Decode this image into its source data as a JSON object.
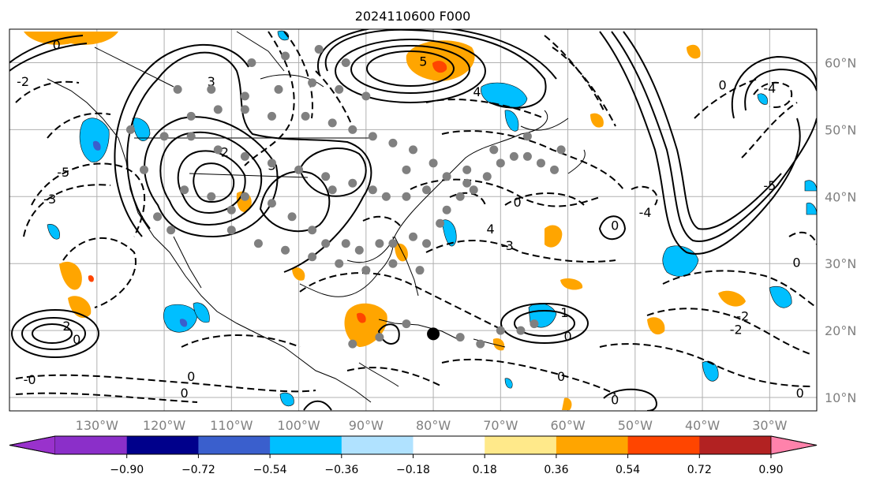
{
  "title": "2024110600 F000",
  "map": {
    "lon_range": [
      -143,
      -23
    ],
    "lat_range": [
      8,
      65
    ],
    "lon_ticks": [
      {
        "value": -130,
        "label": "130°W"
      },
      {
        "value": -120,
        "label": "120°W"
      },
      {
        "value": -110,
        "label": "110°W"
      },
      {
        "value": -100,
        "label": "100°W"
      },
      {
        "value": -90,
        "label": "90°W"
      },
      {
        "value": -80,
        "label": "80°W"
      },
      {
        "value": -70,
        "label": "70°W"
      },
      {
        "value": -60,
        "label": "60°W"
      },
      {
        "value": -50,
        "label": "50°W"
      },
      {
        "value": -40,
        "label": "40°W"
      },
      {
        "value": -30,
        "label": "30°W"
      }
    ],
    "lat_ticks": [
      {
        "value": 10,
        "label": "10°N"
      },
      {
        "value": 20,
        "label": "20°N"
      },
      {
        "value": 30,
        "label": "30°N"
      },
      {
        "value": 40,
        "label": "40°N"
      },
      {
        "value": 50,
        "label": "50°N"
      },
      {
        "value": 60,
        "label": "60°N"
      }
    ],
    "grid": true,
    "marker": {
      "lon": -80,
      "lat": 19.5,
      "color": "#000000"
    },
    "contour_labels": [
      {
        "text": "5",
        "lon": -81.5,
        "lat": 59.5
      },
      {
        "text": "4",
        "lon": -73.5,
        "lat": 55
      },
      {
        "text": "3",
        "lon": -113,
        "lat": 56.5
      },
      {
        "text": "2",
        "lon": -111,
        "lat": 46
      },
      {
        "text": "3",
        "lon": -104,
        "lat": 44
      },
      {
        "text": "0",
        "lon": -136,
        "lat": 62
      },
      {
        "text": "-2",
        "lon": -141,
        "lat": 56.5
      },
      {
        "text": "-3",
        "lon": -137,
        "lat": 39
      },
      {
        "text": "-5",
        "lon": -135,
        "lat": 43
      },
      {
        "text": "4",
        "lon": -71.5,
        "lat": 34.5
      },
      {
        "text": "-3",
        "lon": -69,
        "lat": 32
      },
      {
        "text": "0",
        "lon": -67.5,
        "lat": 38.5
      },
      {
        "text": "0",
        "lon": -53,
        "lat": 35
      },
      {
        "text": "-4",
        "lon": -48.5,
        "lat": 37
      },
      {
        "text": "0",
        "lon": -37,
        "lat": 56
      },
      {
        "text": "-4",
        "lon": -30,
        "lat": 55.5
      },
      {
        "text": "-5",
        "lon": -30,
        "lat": 41
      },
      {
        "text": "0",
        "lon": -26,
        "lat": 29.5
      },
      {
        "text": "2",
        "lon": -134.5,
        "lat": 20
      },
      {
        "text": "0",
        "lon": -133,
        "lat": 18
      },
      {
        "text": "-0",
        "lon": -140,
        "lat": 12
      },
      {
        "text": "0",
        "lon": -116,
        "lat": 12.5
      },
      {
        "text": "0",
        "lon": -117,
        "lat": 10
      },
      {
        "text": "0",
        "lon": -60,
        "lat": 18.5
      },
      {
        "text": "1",
        "lon": -60.5,
        "lat": 22
      },
      {
        "text": "-2",
        "lon": -35,
        "lat": 19.5
      },
      {
        "text": "-2",
        "lon": -34,
        "lat": 21.5
      },
      {
        "text": "0",
        "lon": -25.5,
        "lat": 10
      },
      {
        "text": "0",
        "lon": -61,
        "lat": 12.5
      },
      {
        "text": "0",
        "lon": -53,
        "lat": 9
      }
    ],
    "grey_dots": [
      [
        -120,
        49
      ],
      [
        -116,
        49
      ],
      [
        -112,
        47
      ],
      [
        -108,
        46
      ],
      [
        -104,
        45
      ],
      [
        -100,
        44
      ],
      [
        -96,
        43
      ],
      [
        -95,
        41
      ],
      [
        -92,
        42
      ],
      [
        -89,
        41
      ],
      [
        -87,
        40
      ],
      [
        -84,
        40
      ],
      [
        -81,
        41
      ],
      [
        -78,
        43
      ],
      [
        -75,
        42
      ],
      [
        -72,
        43
      ],
      [
        -70,
        45
      ],
      [
        -68,
        46
      ],
      [
        -66,
        46
      ],
      [
        -64,
        45
      ],
      [
        -62,
        44
      ],
      [
        -61,
        47
      ],
      [
        -66,
        49
      ],
      [
        -71,
        47
      ],
      [
        -117,
        41
      ],
      [
        -113,
        40
      ],
      [
        -110,
        38
      ],
      [
        -108,
        40
      ],
      [
        -104,
        39
      ],
      [
        -101,
        37
      ],
      [
        -98,
        35
      ],
      [
        -96,
        33
      ],
      [
        -93,
        33
      ],
      [
        -91,
        32
      ],
      [
        -88,
        33
      ],
      [
        -86,
        33
      ],
      [
        -83,
        34
      ],
      [
        -81,
        33
      ],
      [
        -79,
        36
      ],
      [
        -78,
        38
      ],
      [
        -76,
        40
      ],
      [
        -74,
        41
      ],
      [
        -110,
        35
      ],
      [
        -106,
        33
      ],
      [
        -102,
        32
      ],
      [
        -98,
        31
      ],
      [
        -94,
        30
      ],
      [
        -90,
        29
      ],
      [
        -86,
        30
      ],
      [
        -82,
        29
      ],
      [
        -116,
        52
      ],
      [
        -112,
        53
      ],
      [
        -108,
        53
      ],
      [
        -104,
        52
      ],
      [
        -99,
        52
      ],
      [
        -95,
        51
      ],
      [
        -92,
        50
      ],
      [
        -89,
        49
      ],
      [
        -86,
        48
      ],
      [
        -83,
        47
      ],
      [
        -118,
        56
      ],
      [
        -113,
        56
      ],
      [
        -108,
        55
      ],
      [
        -103,
        56
      ],
      [
        -98,
        57
      ],
      [
        -94,
        56
      ],
      [
        -90,
        55
      ],
      [
        -93,
        60
      ],
      [
        -97,
        62
      ],
      [
        -102,
        61
      ],
      [
        -107,
        60
      ],
      [
        -84,
        21
      ],
      [
        -88,
        19
      ],
      [
        -92,
        18
      ],
      [
        -76,
        19
      ],
      [
        -73,
        18
      ],
      [
        -70,
        20
      ],
      [
        -67,
        20
      ],
      [
        -65,
        21
      ],
      [
        -75,
        44
      ],
      [
        -80,
        45
      ],
      [
        -84,
        44
      ],
      [
        -123,
        44
      ],
      [
        -125,
        50
      ],
      [
        -121,
        37
      ],
      [
        -119,
        35
      ]
    ],
    "legend_note": ""
  },
  "colorbar": {
    "colors": [
      "#9932cc",
      "#8b2fc9",
      "#00008b",
      "#3a5fcd",
      "#00bfff",
      "#b0e2ff",
      "#ffffff",
      "#ffe98a",
      "#ffa500",
      "#ff4500",
      "#b22222",
      "#ff82ab"
    ],
    "ticks": [
      "−0.90",
      "−0.72",
      "−0.54",
      "−0.36",
      "−0.18",
      "0.18",
      "0.36",
      "0.54",
      "0.72",
      "0.90"
    ]
  }
}
